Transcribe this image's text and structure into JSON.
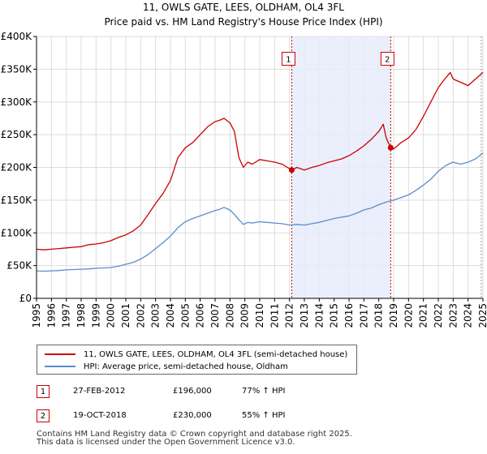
{
  "chart_data": {
    "type": "line",
    "title": "11, OWLS GATE, LEES, OLDHAM, OL4 3FL",
    "subtitle": "Price paid vs. HM Land Registry's House Price Index (HPI)",
    "xlim": [
      1995,
      2025
    ],
    "ylim": [
      0,
      400000
    ],
    "x_ticks": [
      "1995",
      "1996",
      "1997",
      "1998",
      "1999",
      "2000",
      "2001",
      "2002",
      "2003",
      "2004",
      "2005",
      "2006",
      "2007",
      "2008",
      "2009",
      "2010",
      "2011",
      "2012",
      "2013",
      "2014",
      "2015",
      "2016",
      "2017",
      "2018",
      "2019",
      "2020",
      "2021",
      "2022",
      "2023",
      "2024",
      "2025"
    ],
    "y_ticks": [
      {
        "value": 0,
        "label": "£0"
      },
      {
        "value": 50000,
        "label": "£50K"
      },
      {
        "value": 100000,
        "label": "£100K"
      },
      {
        "value": 150000,
        "label": "£150K"
      },
      {
        "value": 200000,
        "label": "£200K"
      },
      {
        "value": 250000,
        "label": "£250K"
      },
      {
        "value": 300000,
        "label": "£300K"
      },
      {
        "value": 350000,
        "label": "£350K"
      },
      {
        "value": 400000,
        "label": "£400K"
      }
    ],
    "shaded_region": {
      "from": 2012.15,
      "to": 2018.8,
      "color": "#e6ecfa"
    },
    "series": [
      {
        "name": "11, OWLS GATE, LEES, OLDHAM, OL4 3FL (semi-detached house)",
        "color": "#cc0000",
        "x": [
          1995,
          1995.5,
          1996,
          1996.5,
          1997,
          1997.5,
          1998,
          1998.5,
          1999,
          1999.5,
          2000,
          2000.5,
          2001,
          2001.5,
          2002,
          2002.5,
          2003,
          2003.5,
          2004,
          2004.5,
          2005,
          2005.5,
          2006,
          2006.5,
          2007,
          2007.3,
          2007.6,
          2008,
          2008.3,
          2008.6,
          2008.9,
          2009.2,
          2009.5,
          2010,
          2010.5,
          2011,
          2011.5,
          2012,
          2012.15,
          2012.5,
          2013,
          2013.5,
          2014,
          2014.5,
          2015,
          2015.5,
          2016,
          2016.5,
          2017,
          2017.5,
          2018,
          2018.3,
          2018.5,
          2018.8,
          2019,
          2019.5,
          2020,
          2020.5,
          2021,
          2021.5,
          2022,
          2022.5,
          2022.8,
          2023,
          2023.5,
          2024,
          2024.5,
          2025
        ],
        "y": [
          75000,
          74000,
          75000,
          76000,
          77000,
          78000,
          79000,
          82000,
          83000,
          85000,
          88000,
          93000,
          97000,
          103000,
          112000,
          128000,
          145000,
          160000,
          180000,
          215000,
          230000,
          238000,
          250000,
          262000,
          270000,
          272000,
          275000,
          268000,
          255000,
          215000,
          200000,
          208000,
          205000,
          212000,
          210000,
          208000,
          205000,
          198000,
          196000,
          200000,
          196000,
          200000,
          203000,
          207000,
          210000,
          213000,
          218000,
          225000,
          233000,
          243000,
          255000,
          266000,
          245000,
          230000,
          228000,
          238000,
          245000,
          258000,
          278000,
          300000,
          322000,
          337000,
          345000,
          335000,
          330000,
          325000,
          335000,
          345000
        ]
      },
      {
        "name": "HPI: Average price, semi-detached house, Oldham",
        "color": "#5b8ccc",
        "x": [
          1995,
          1995.5,
          1996,
          1996.5,
          1997,
          1997.5,
          1998,
          1998.5,
          1999,
          1999.5,
          2000,
          2000.5,
          2001,
          2001.5,
          2002,
          2002.5,
          2003,
          2003.5,
          2004,
          2004.5,
          2005,
          2005.5,
          2006,
          2006.5,
          2007,
          2007.3,
          2007.6,
          2008,
          2008.3,
          2008.6,
          2008.9,
          2009.2,
          2009.5,
          2010,
          2010.5,
          2011,
          2011.5,
          2012,
          2012.5,
          2013,
          2013.5,
          2014,
          2014.5,
          2015,
          2015.5,
          2016,
          2016.5,
          2017,
          2017.5,
          2018,
          2018.5,
          2019,
          2019.5,
          2020,
          2020.5,
          2021,
          2021.5,
          2022,
          2022.5,
          2023,
          2023.5,
          2024,
          2024.5,
          2025
        ],
        "y": [
          42000,
          41500,
          42000,
          42500,
          43500,
          44000,
          44500,
          45000,
          46000,
          46500,
          47000,
          49000,
          52000,
          55000,
          60000,
          67000,
          76000,
          85000,
          95000,
          108000,
          117000,
          122000,
          126000,
          130000,
          134000,
          136000,
          139000,
          135000,
          128000,
          120000,
          113000,
          116000,
          115000,
          117000,
          116000,
          115000,
          114000,
          112000,
          113000,
          112000,
          114000,
          116000,
          119000,
          122000,
          124000,
          126000,
          130000,
          135000,
          138000,
          143000,
          147000,
          150000,
          154000,
          158000,
          165000,
          173000,
          182000,
          194000,
          203000,
          208000,
          205000,
          208000,
          213000,
          222000
        ]
      }
    ],
    "markers": [
      {
        "label": "1",
        "x": 2012.15,
        "price": 196000
      },
      {
        "label": "2",
        "x": 2018.8,
        "price": 230000
      }
    ],
    "marker_label_y": 366000
  },
  "legend": {
    "items": [
      {
        "label": "11, OWLS GATE, LEES, OLDHAM, OL4 3FL (semi-detached house)",
        "color": "#cc0000"
      },
      {
        "label": "HPI: Average price, semi-detached house, Oldham",
        "color": "#5b8ccc"
      }
    ]
  },
  "annotations": [
    {
      "num": "1",
      "date": "27-FEB-2012",
      "price": "£196,000",
      "hpi": "77% ↑ HPI"
    },
    {
      "num": "2",
      "date": "19-OCT-2018",
      "price": "£230,000",
      "hpi": "55% ↑ HPI"
    }
  ],
  "footer": {
    "line1": "Contains HM Land Registry data © Crown copyright and database right 2025.",
    "line2": "This data is licensed under the Open Government Licence v3.0."
  }
}
